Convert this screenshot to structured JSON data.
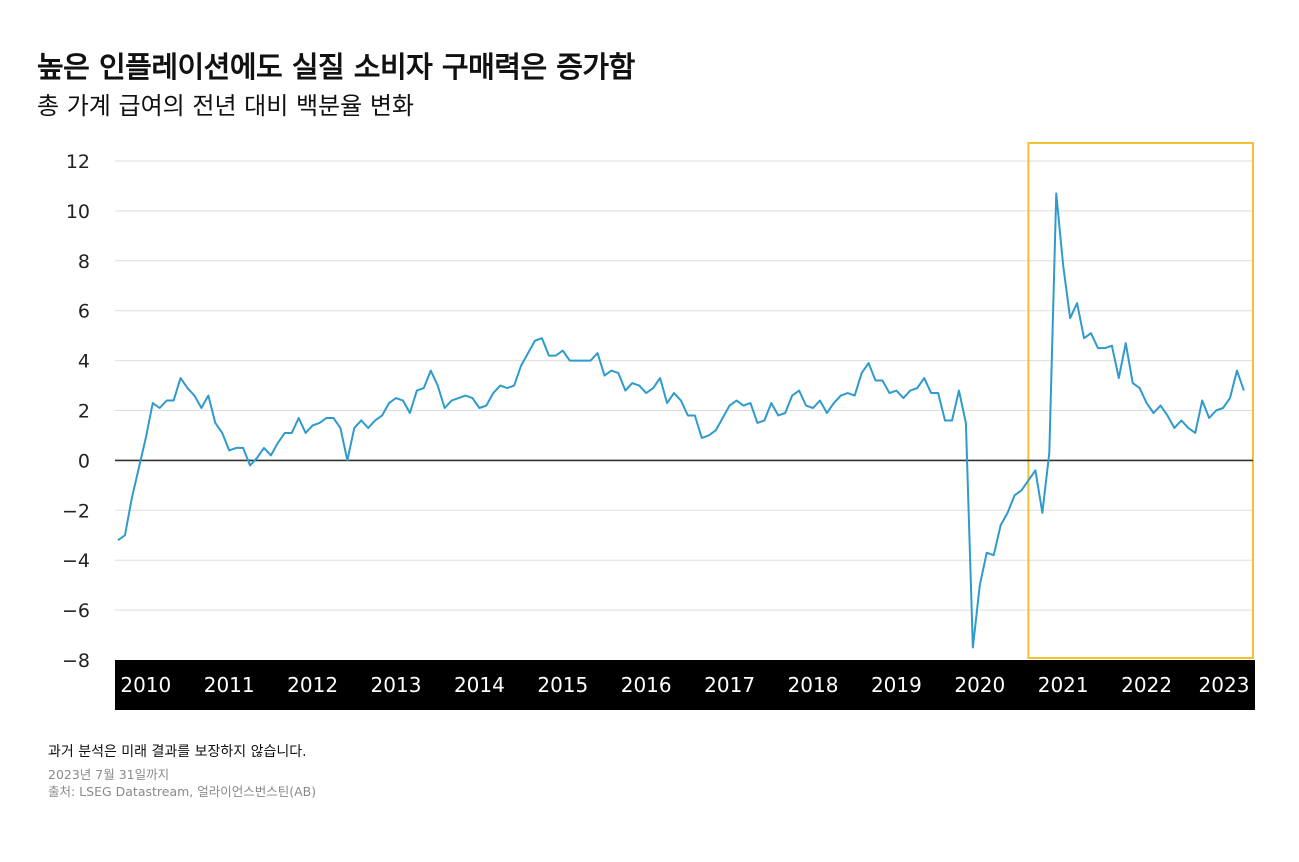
{
  "title": "높은 인플레이션에도 실질 소비자 구매력은 증가함",
  "subtitle": "총 가계 급여의 전년 대비 백분율 변화",
  "footer": {
    "disclaimer": "과거 분석은 미래 결과를 보장하지 않습니다.",
    "date_note": "2023년 7월 31일까지",
    "source": "출처: LSEG Datastream, 얼라이언스번스틴(AB)"
  },
  "colors": {
    "line": "#2e9bcc",
    "highlight_box": "#f2c230",
    "zero_line": "#333333",
    "grid": "#dddddd",
    "axis_band": "#000000",
    "axis_text": "#ffffff"
  },
  "chart_data": {
    "type": "line",
    "title": "높은 인플레이션에도 실질 소비자 구매력은 증가함",
    "subtitle": "총 가계 급여의 전년 대비 백분율 변화",
    "xlabel": "",
    "ylabel": "",
    "ylim": [
      -8,
      12
    ],
    "yticks": [
      "−8",
      "−6",
      "−4",
      "−2",
      "0",
      "2",
      "4",
      "6",
      "8",
      "10",
      "12"
    ],
    "xticks": [
      "2010",
      "2011",
      "2012",
      "2013",
      "2014",
      "2015",
      "2016",
      "2017",
      "2018",
      "2019",
      "2020",
      "2021",
      "2022",
      "2023"
    ],
    "grid": "horizontal",
    "highlight_range": [
      "2021-01",
      "2023-07"
    ],
    "series": [
      {
        "x_start": "2010-01",
        "x_end": "2023-07",
        "frequency": "monthly",
        "values": [
          -3.2,
          -3.0,
          -1.5,
          -0.3,
          0.9,
          2.3,
          2.1,
          2.4,
          2.4,
          3.3,
          2.9,
          2.6,
          2.1,
          2.6,
          1.5,
          1.1,
          0.4,
          0.5,
          0.5,
          -0.2,
          0.1,
          0.5,
          0.2,
          0.7,
          1.1,
          1.1,
          1.7,
          1.1,
          1.4,
          1.5,
          1.7,
          1.7,
          1.3,
          0.0,
          1.3,
          1.6,
          1.3,
          1.6,
          1.8,
          2.3,
          2.5,
          2.4,
          1.9,
          2.8,
          2.9,
          3.6,
          3.0,
          2.1,
          2.4,
          2.5,
          2.6,
          2.5,
          2.1,
          2.2,
          2.7,
          3.0,
          2.9,
          3.0,
          3.8,
          4.3,
          4.8,
          4.9,
          4.2,
          4.2,
          4.4,
          4.0,
          4.0,
          4.0,
          4.0,
          4.3,
          3.4,
          3.6,
          3.5,
          2.8,
          3.1,
          3.0,
          2.7,
          2.9,
          3.3,
          2.3,
          2.7,
          2.4,
          1.8,
          1.8,
          0.9,
          1.0,
          1.2,
          1.7,
          2.2,
          2.4,
          2.2,
          2.3,
          1.5,
          1.6,
          2.3,
          1.8,
          1.9,
          2.6,
          2.8,
          2.2,
          2.1,
          2.4,
          1.9,
          2.3,
          2.6,
          2.7,
          2.6,
          3.5,
          3.9,
          3.2,
          3.2,
          2.7,
          2.8,
          2.5,
          2.8,
          2.9,
          3.3,
          2.7,
          2.7,
          1.6,
          1.6,
          2.8,
          1.5,
          -7.5,
          -5.0,
          -3.7,
          -3.8,
          -2.6,
          -2.1,
          -1.4,
          -1.2,
          -0.8,
          -0.4,
          -2.1,
          0.3,
          10.7,
          7.8,
          5.7,
          6.3,
          4.9,
          5.1,
          4.5,
          4.5,
          4.6,
          3.3,
          4.7,
          3.1,
          2.9,
          2.3,
          1.9,
          2.2,
          1.8,
          1.3,
          1.6,
          1.3,
          1.1,
          2.4,
          1.7,
          2.0,
          2.1,
          2.5,
          3.6,
          2.8
        ]
      }
    ]
  }
}
